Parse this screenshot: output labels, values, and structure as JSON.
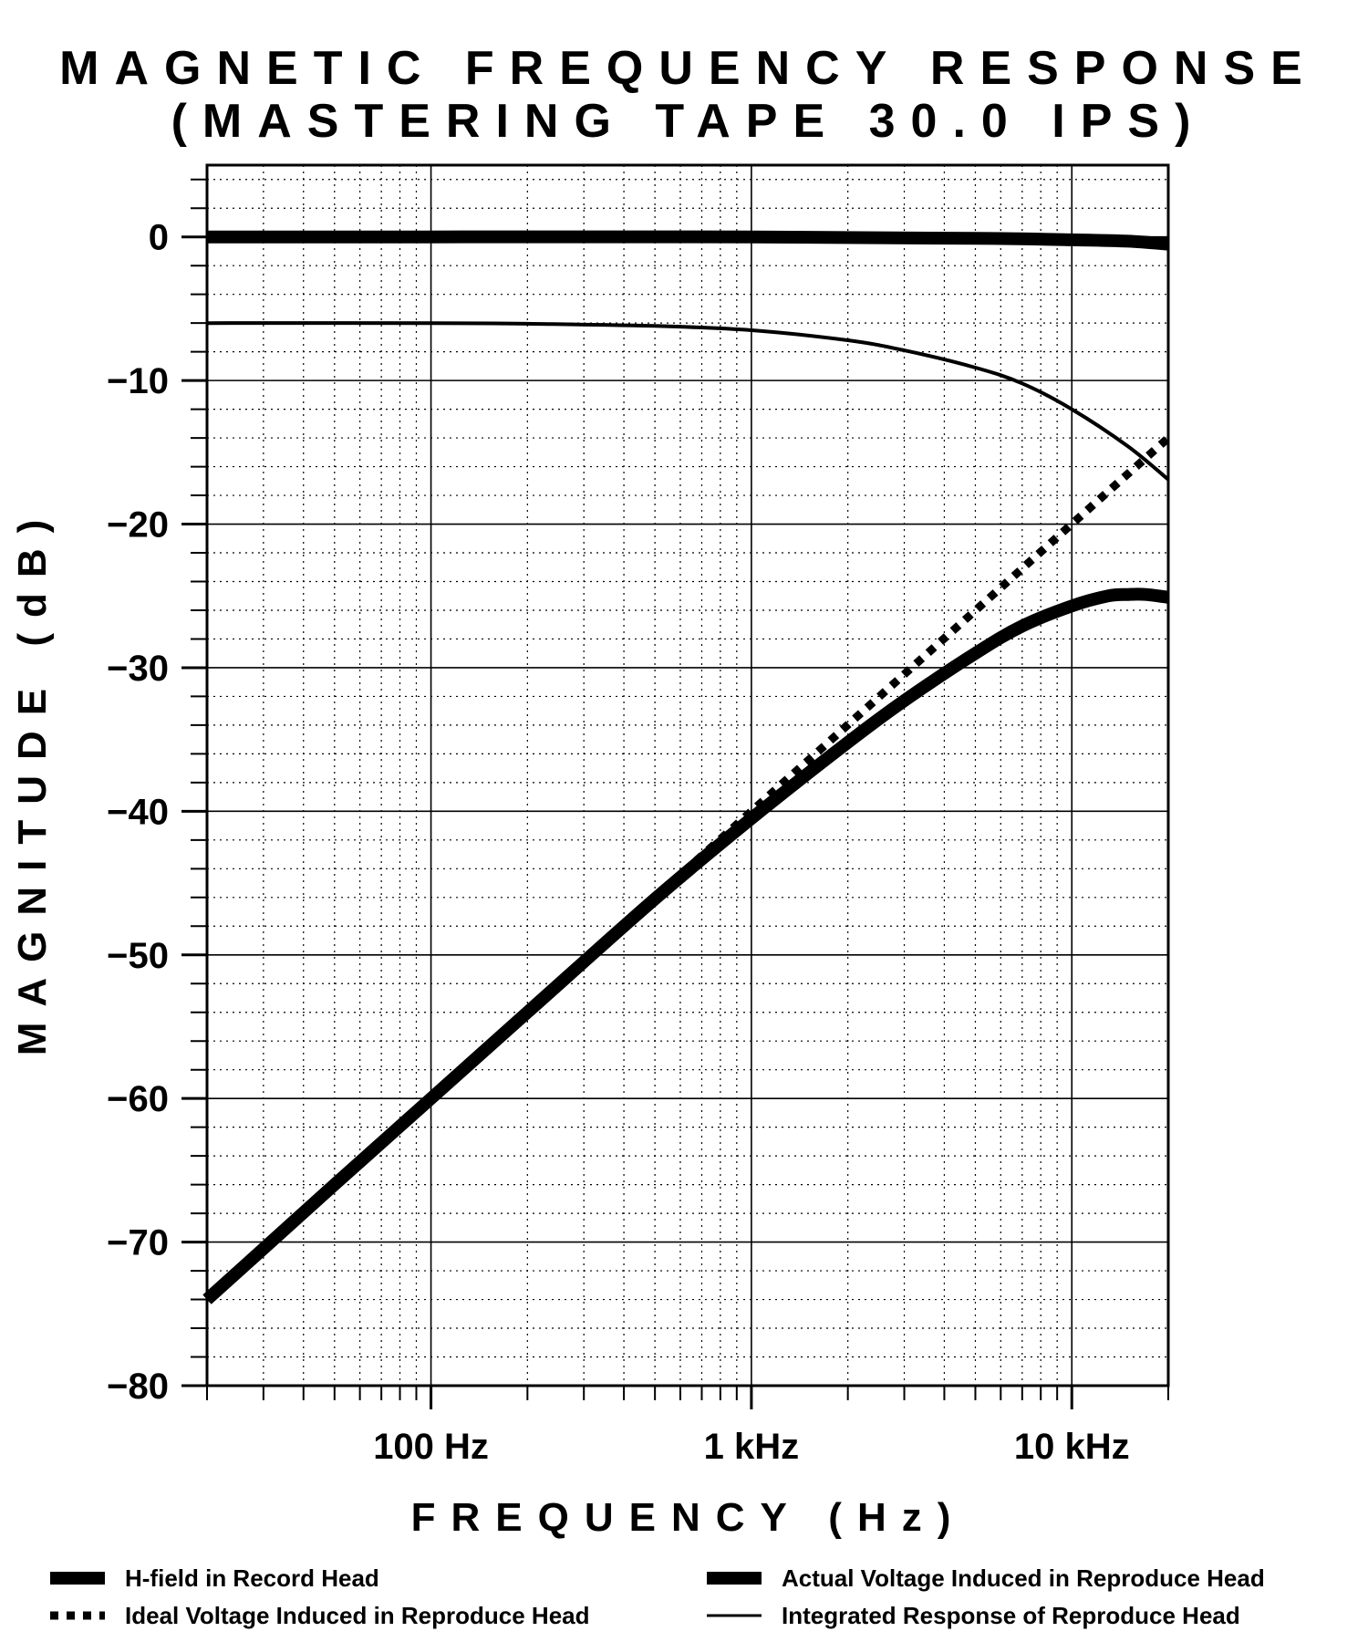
{
  "chart_data": {
    "type": "line",
    "title": "MAGNETIC FREQUENCY RESPONSE",
    "subtitle": "(MASTERING TAPE 30.0 IPS)",
    "xlabel": "FREQUENCY (Hz)",
    "ylabel": "MAGNITUDE (dB)",
    "xscale": "log",
    "xlim": [
      20,
      20000
    ],
    "ylim": [
      -80,
      5
    ],
    "grid": true,
    "legend_position": "bottom",
    "x_ticks": [
      {
        "value": 100,
        "label": "100 Hz"
      },
      {
        "value": 1000,
        "label": "1 kHz"
      },
      {
        "value": 10000,
        "label": "10 kHz"
      }
    ],
    "y_ticks": [
      {
        "value": 0,
        "label": "0"
      },
      {
        "value": -10,
        "label": "−10"
      },
      {
        "value": -20,
        "label": "−20"
      },
      {
        "value": -30,
        "label": "−30"
      },
      {
        "value": -40,
        "label": "−40"
      },
      {
        "value": -50,
        "label": "−50"
      },
      {
        "value": -60,
        "label": "−60"
      },
      {
        "value": -70,
        "label": "−70"
      },
      {
        "value": -80,
        "label": "−80"
      }
    ],
    "series": [
      {
        "name": "H-field in Record Head",
        "style": "thick",
        "x": [
          20,
          100,
          1000,
          5000,
          10000,
          15000,
          20000
        ],
        "y": [
          0,
          0,
          0,
          -0.1,
          -0.2,
          -0.3,
          -0.5
        ]
      },
      {
        "name": "Ideal Voltage Induced in Reproduce Head",
        "style": "dotted",
        "x": [
          20,
          100,
          1000,
          10000,
          20000
        ],
        "y": [
          -74,
          -60,
          -40,
          -20,
          -14
        ]
      },
      {
        "name": "Actual Voltage Induced in Reproduce Head",
        "style": "thick",
        "x": [
          20,
          50,
          100,
          200,
          500,
          1000,
          2000,
          3000,
          5000,
          7000,
          10000,
          13000,
          15000,
          17000,
          20000
        ],
        "y": [
          -74,
          -66,
          -60,
          -54,
          -46.1,
          -40.5,
          -35.2,
          -32.3,
          -29,
          -27.1,
          -25.7,
          -25.0,
          -24.9,
          -24.9,
          -25.1
        ]
      },
      {
        "name": "Integrated Response of Reproduce Head",
        "style": "thin",
        "x": [
          20,
          100,
          200,
          500,
          1000,
          2000,
          3000,
          5000,
          7000,
          10000,
          15000,
          20000
        ],
        "y": [
          -6,
          -6,
          -6.05,
          -6.2,
          -6.5,
          -7.2,
          -7.9,
          -9.1,
          -10.2,
          -12.0,
          -14.6,
          -16.9
        ]
      }
    ]
  }
}
